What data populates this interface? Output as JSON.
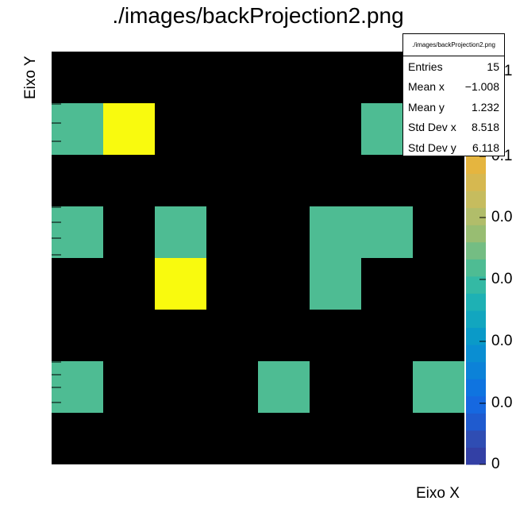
{
  "title": "./images/backProjection2.png",
  "stats": {
    "title": "./images/backProjection2.png",
    "rows": [
      {
        "label": "Entries",
        "value": "15"
      },
      {
        "label": "Mean x",
        "value": "−1.008"
      },
      {
        "label": "Mean y",
        "value": "1.232"
      },
      {
        "label": "Std Dev x",
        "value": "8.518"
      },
      {
        "label": "Std Dev y",
        "value": "6.118"
      }
    ]
  },
  "palette_ticks": [
    "0",
    "0.0",
    "0.0",
    "0.0",
    "0.0",
    "0.1",
    "0.1"
  ],
  "chart_data": {
    "type": "heatmap",
    "title": "./images/backProjection2.png",
    "xlabel": "Eixo X",
    "ylabel": "Eixo Y",
    "grid": false,
    "columns": 8,
    "rows": 8,
    "row_order": "top-to-bottom",
    "cells": [
      {
        "col": 0,
        "row": 1,
        "value": 0.067
      },
      {
        "col": 1,
        "row": 1,
        "value": 0.133
      },
      {
        "col": 6,
        "row": 1,
        "value": 0.067
      },
      {
        "col": 7,
        "row": 1,
        "value": 0.067
      },
      {
        "col": 0,
        "row": 3,
        "value": 0.067
      },
      {
        "col": 2,
        "row": 3,
        "value": 0.067
      },
      {
        "col": 5,
        "row": 3,
        "value": 0.067
      },
      {
        "col": 6,
        "row": 3,
        "value": 0.067
      },
      {
        "col": 2,
        "row": 4,
        "value": 0.133
      },
      {
        "col": 5,
        "row": 4,
        "value": 0.067
      },
      {
        "col": 0,
        "row": 6,
        "value": 0.067
      },
      {
        "col": 4,
        "row": 6,
        "value": 0.067
      },
      {
        "col": 7,
        "row": 6,
        "value": 0.067
      }
    ],
    "zlim": [
      0,
      0.133
    ],
    "colors": {
      "background": "#000000",
      "low": "#4ebc93",
      "high": "#f9fa0e"
    },
    "palette": [
      "#3340a5",
      "#2f4db3",
      "#1f5bcf",
      "#1668e0",
      "#0f74e0",
      "#0c82d8",
      "#0a8ed2",
      "#0a9ac8",
      "#12a6bf",
      "#1eb1b4",
      "#34b9a4",
      "#4ebc93",
      "#74bd83",
      "#98bd72",
      "#b1bd6a",
      "#c6bc5e",
      "#d6b850",
      "#e5b53f"
    ]
  }
}
